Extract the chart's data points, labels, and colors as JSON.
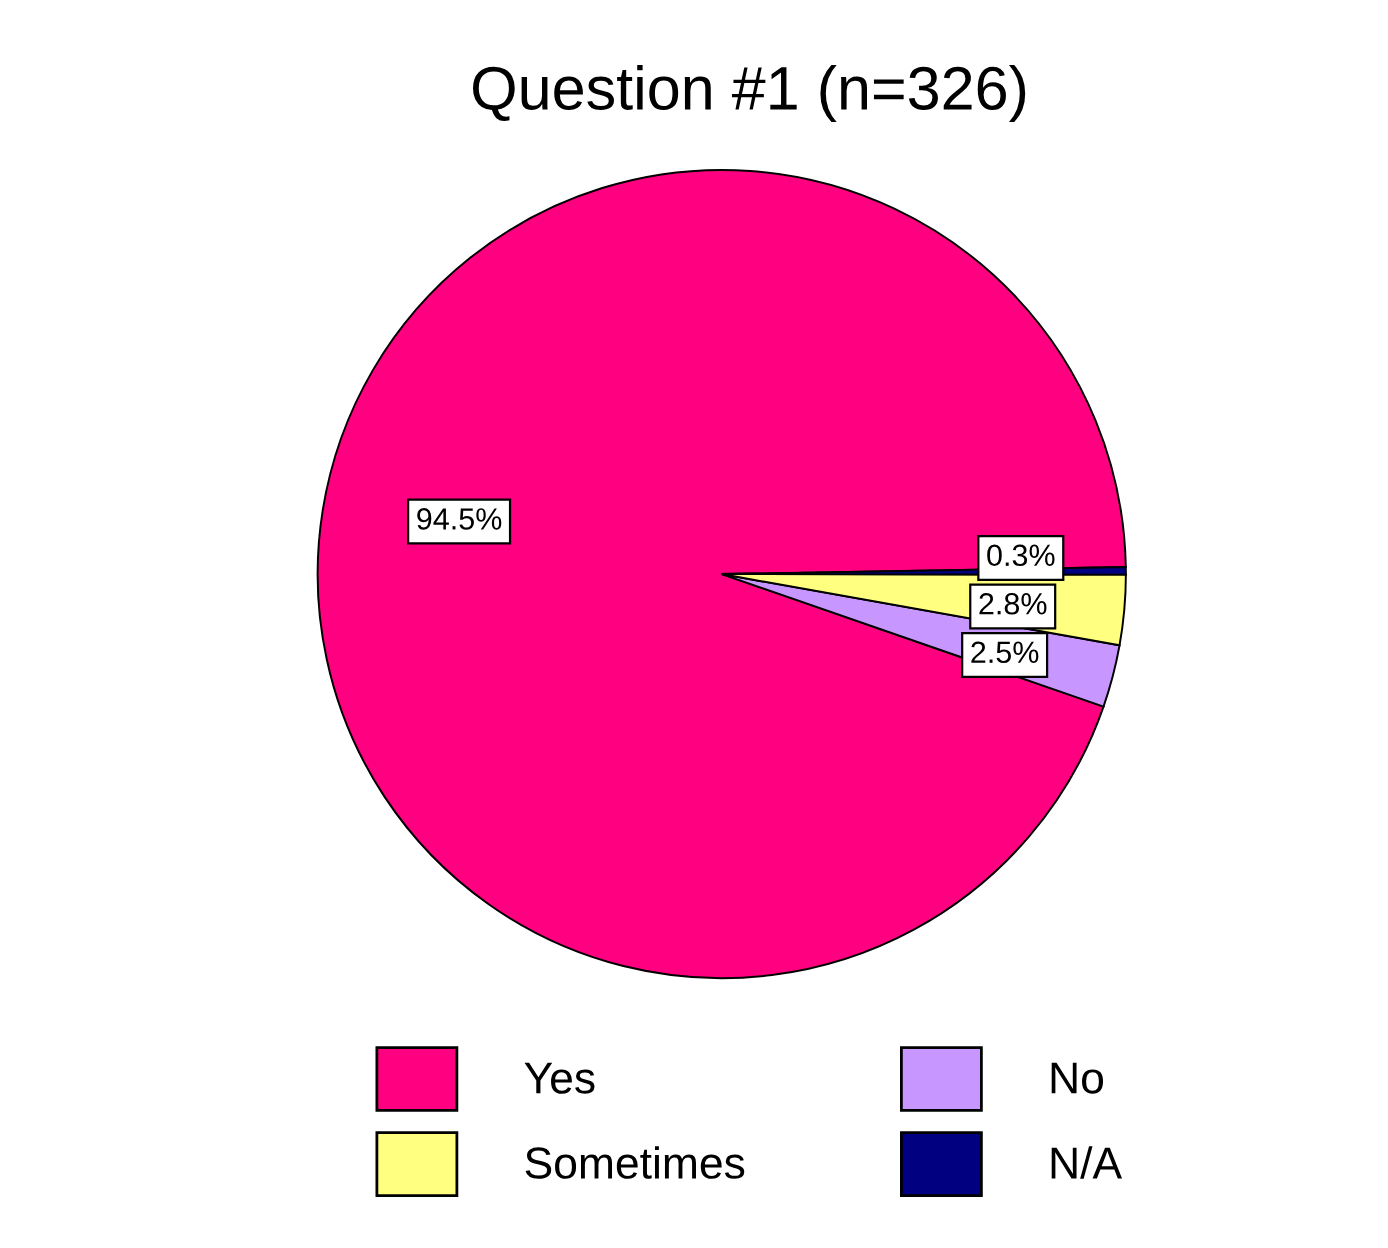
{
  "chart_data": {
    "type": "pie",
    "title": "Question #1 (n=326)",
    "categories": [
      "Yes",
      "No",
      "Sometimes",
      "N/A"
    ],
    "values": [
      94.5,
      2.5,
      2.8,
      0.3
    ],
    "value_labels": [
      "94.5%",
      "2.5%",
      "2.8%",
      "0.3%"
    ],
    "colors": [
      "#ff0080",
      "#c896ff",
      "#ffff80",
      "#000080"
    ],
    "legend": "bottom"
  }
}
